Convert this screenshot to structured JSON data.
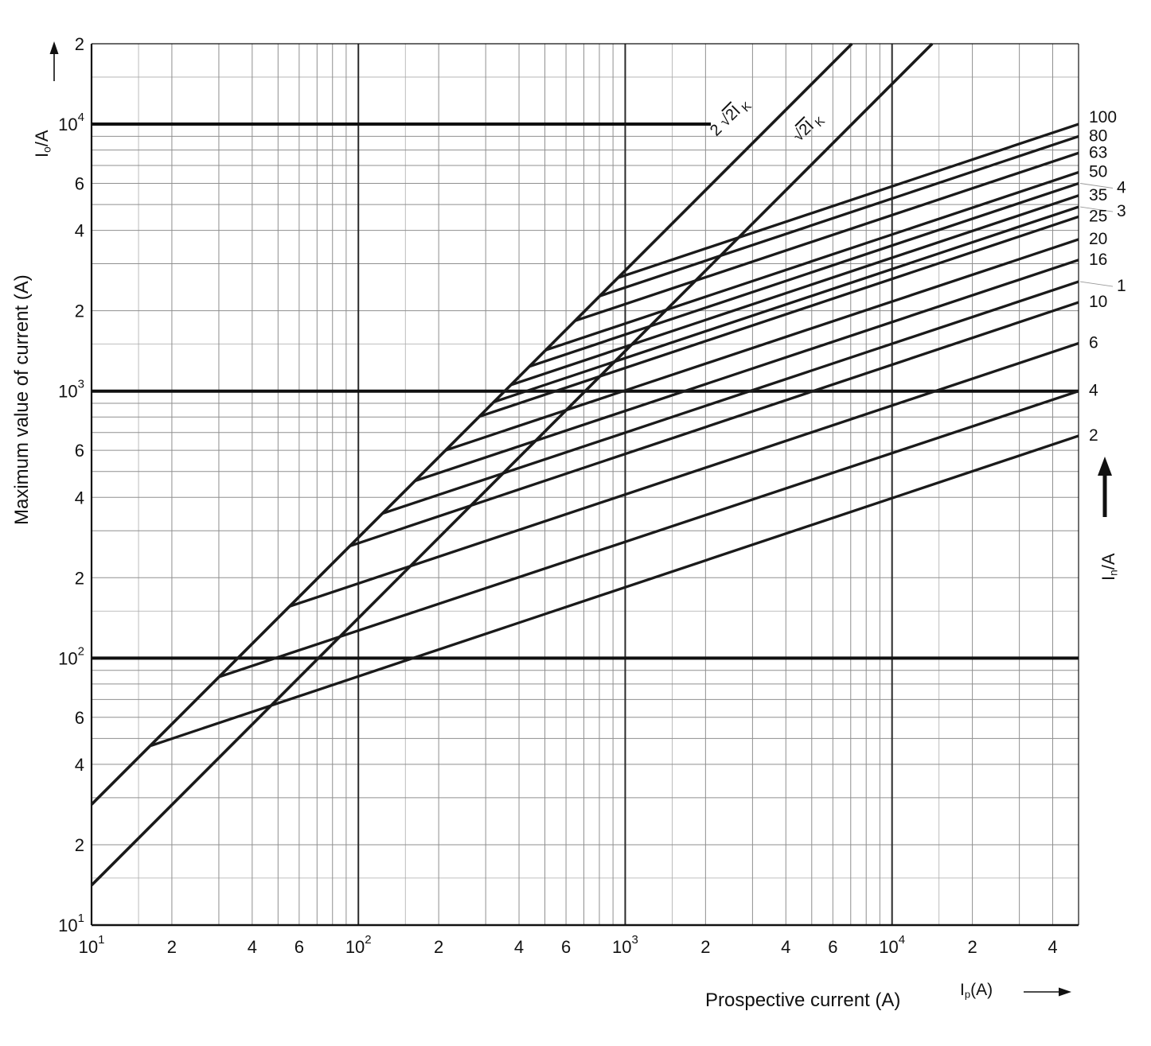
{
  "chart_data": {
    "type": "line",
    "scale": "log-log",
    "xlabel": "Prospective current (A)",
    "ylabel": "Maximum value of current (A)",
    "x_symbol": {
      "base": "I",
      "sub": "p",
      "suffix": "(A)"
    },
    "y_symbol": {
      "base": "I",
      "sub": "o",
      "suffix": "/A"
    },
    "right_symbol": {
      "base": "I",
      "sub": "n",
      "suffix": "/A"
    },
    "xlim": [
      10,
      50000
    ],
    "ylim": [
      10,
      20000
    ],
    "x_ticks": [
      {
        "v": 10,
        "t": "10",
        "e": "1"
      },
      {
        "v": 20,
        "t": "2"
      },
      {
        "v": 40,
        "t": "4"
      },
      {
        "v": 60,
        "t": "6"
      },
      {
        "v": 100,
        "t": "10",
        "e": "2"
      },
      {
        "v": 200,
        "t": "2"
      },
      {
        "v": 400,
        "t": "4"
      },
      {
        "v": 600,
        "t": "6"
      },
      {
        "v": 1000,
        "t": "10",
        "e": "3"
      },
      {
        "v": 2000,
        "t": "2"
      },
      {
        "v": 4000,
        "t": "4"
      },
      {
        "v": 6000,
        "t": "6"
      },
      {
        "v": 10000,
        "t": "10",
        "e": "4"
      },
      {
        "v": 20000,
        "t": "2"
      },
      {
        "v": 40000,
        "t": "4"
      }
    ],
    "y_ticks": [
      {
        "v": 10,
        "t": "10",
        "e": "1"
      },
      {
        "v": 20,
        "t": "2"
      },
      {
        "v": 40,
        "t": "4"
      },
      {
        "v": 60,
        "t": "6"
      },
      {
        "v": 100,
        "t": "10",
        "e": "2"
      },
      {
        "v": 200,
        "t": "2"
      },
      {
        "v": 400,
        "t": "4"
      },
      {
        "v": 600,
        "t": "6"
      },
      {
        "v": 1000,
        "t": "10",
        "e": "3"
      },
      {
        "v": 2000,
        "t": "2"
      },
      {
        "v": 4000,
        "t": "4"
      },
      {
        "v": 6000,
        "t": "6"
      },
      {
        "v": 10000,
        "t": "10",
        "e": "4"
      },
      {
        "v": 20000,
        "t": "2"
      }
    ],
    "envelopes": [
      {
        "name": "2sqrt2-Ik",
        "label_pre": "2 ",
        "label_root": "2I",
        "label_sub": "K",
        "factor": 2.828,
        "points": [
          [
            10,
            28.3
          ],
          [
            7072,
            20000
          ]
        ]
      },
      {
        "name": "sqrt2-Ik",
        "label_pre": "",
        "label_root": "2I",
        "label_sub": "K",
        "factor": 1.414,
        "points": [
          [
            10,
            14.1
          ],
          [
            14144,
            20000
          ]
        ]
      }
    ],
    "series": [
      {
        "label": "100",
        "cut": false,
        "points": [
          [
            940,
            2658
          ],
          [
            50000,
            10000
          ]
        ]
      },
      {
        "label": "80",
        "cut": false,
        "points": [
          [
            803,
            2271
          ],
          [
            50000,
            9000
          ]
        ]
      },
      {
        "label": "63",
        "cut": false,
        "points": [
          [
            648,
            1833
          ],
          [
            50000,
            7800
          ]
        ]
      },
      {
        "label": "50",
        "cut": false,
        "points": [
          [
            504,
            1425
          ],
          [
            50000,
            6600
          ]
        ]
      },
      {
        "label": "4",
        "cut": true,
        "points": [
          [
            437,
            1236
          ],
          [
            50000,
            6000
          ]
        ]
      },
      {
        "label": "35",
        "cut": false,
        "points": [
          [
            373,
            1055
          ],
          [
            50000,
            5400
          ]
        ]
      },
      {
        "label": "3",
        "cut": true,
        "points": [
          [
            322,
            911
          ],
          [
            50000,
            4900
          ]
        ]
      },
      {
        "label": "25",
        "cut": false,
        "points": [
          [
            284,
            803
          ],
          [
            50000,
            4500
          ]
        ]
      },
      {
        "label": "20",
        "cut": false,
        "points": [
          [
            212,
            600
          ],
          [
            50000,
            3700
          ]
        ]
      },
      {
        "label": "16",
        "cut": false,
        "points": [
          [
            163,
            461
          ],
          [
            50000,
            3100
          ]
        ]
      },
      {
        "label": "1",
        "cut": true,
        "points": [
          [
            123,
            348
          ],
          [
            50000,
            2570
          ]
        ]
      },
      {
        "label": "10",
        "cut": false,
        "points": [
          [
            93,
            263
          ],
          [
            50000,
            2150
          ]
        ]
      },
      {
        "label": "6",
        "cut": false,
        "points": [
          [
            55,
            156
          ],
          [
            50000,
            1510
          ]
        ]
      },
      {
        "label": "4",
        "cut": false,
        "points": [
          [
            30,
            85
          ],
          [
            50000,
            1000
          ]
        ]
      },
      {
        "label": "2",
        "cut": false,
        "points": [
          [
            16.7,
            47
          ],
          [
            50000,
            680
          ]
        ]
      }
    ]
  },
  "colors": {
    "line": "#1a1a1a",
    "grid_minor": "#8f8f8f",
    "grid_fine": "#ababab",
    "grid_major": "#2a2a2a",
    "emphasis": "#101010",
    "text": "#111111",
    "background": "#ffffff"
  }
}
